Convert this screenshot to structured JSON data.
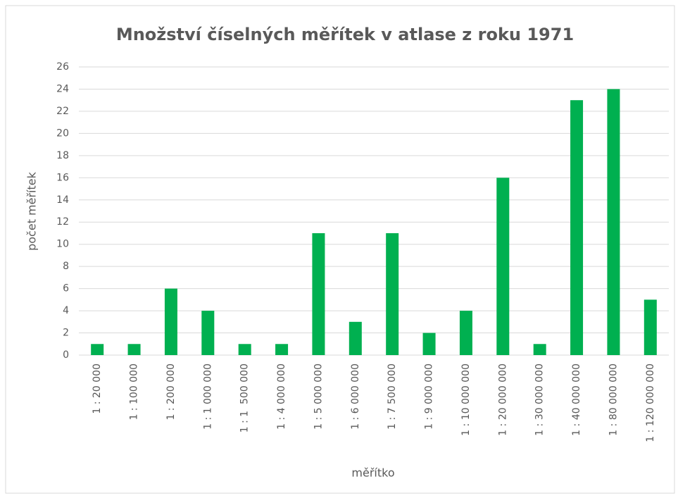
{
  "chart_data": {
    "type": "bar",
    "title": "Množství číselných měřítek v atlase z roku 1971",
    "x_label": "měřítko",
    "y_label": "počet měřítek",
    "categories": [
      "1 : 20 000",
      "1 : 100 000",
      "1 : 200 000",
      "1 : 1 000 000",
      "1 : 1  500 000",
      "1 : 4 000 000",
      "1 : 5 000 000",
      "1 : 6 000 000",
      "1 : 7 500 000",
      "1 : 9 000 000",
      "1 : 10 000 000",
      "1 : 20 000 000",
      "1 : 30 000 000",
      "1 : 40 000 000",
      "1 : 80 000 000",
      "1 : 120 000 000"
    ],
    "values": [
      1,
      1,
      6,
      4,
      1,
      1,
      11,
      3,
      11,
      2,
      4,
      16,
      1,
      23,
      24,
      5
    ],
    "color": "#00b050",
    "ylim": [
      0,
      26
    ],
    "yticks": [
      0,
      2,
      4,
      6,
      8,
      10,
      12,
      14,
      16,
      18,
      20,
      22,
      24,
      26
    ],
    "grid": true
  }
}
